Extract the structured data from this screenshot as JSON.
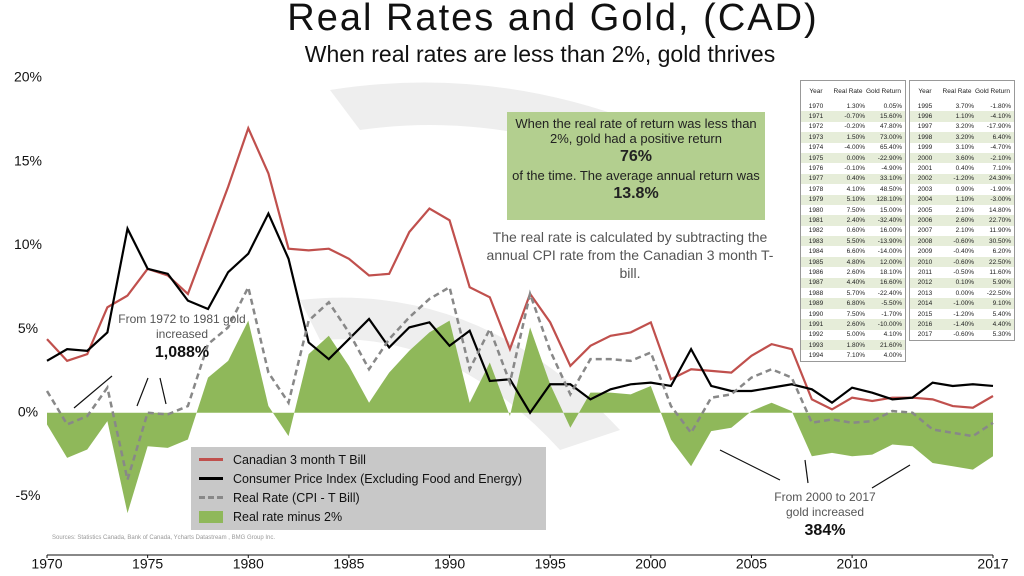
{
  "chart_data": {
    "type": "line",
    "title": "Real Rates and Gold, (CAD)",
    "subtitle": "When real rates are less than 2%, gold thrives",
    "x": [
      1970,
      1971,
      1972,
      1973,
      1974,
      1975,
      1976,
      1977,
      1978,
      1979,
      1980,
      1981,
      1982,
      1983,
      1984,
      1985,
      1986,
      1987,
      1988,
      1989,
      1990,
      1991,
      1992,
      1993,
      1994,
      1995,
      1996,
      1997,
      1998,
      1999,
      2000,
      2001,
      2002,
      2003,
      2004,
      2005,
      2006,
      2007,
      2008,
      2009,
      2010,
      2011,
      2012,
      2013,
      2014,
      2015,
      2016,
      2017
    ],
    "xlim": [
      1970,
      2017
    ],
    "xticks": [
      1970,
      1975,
      1980,
      1985,
      1990,
      1995,
      2000,
      2005,
      2010,
      2017
    ],
    "ylim": [
      -8.5,
      20
    ],
    "yticks": [
      {
        "value": 20,
        "label": "20%"
      },
      {
        "value": 15,
        "label": "15%"
      },
      {
        "value": 10,
        "label": "10%"
      },
      {
        "value": 5,
        "label": "5%"
      },
      {
        "value": 0,
        "label": "0%"
      },
      {
        "value": -5,
        "label": "-5%"
      }
    ],
    "grid": false,
    "series": [
      {
        "name": "Real rate minus 2%",
        "color": "#8fb85a",
        "area": true,
        "values": [
          -0.7,
          -2.7,
          -2.2,
          -0.5,
          -6.0,
          -2.0,
          -2.1,
          -1.6,
          2.1,
          3.1,
          5.5,
          0.4,
          -1.4,
          3.5,
          4.6,
          2.8,
          0.6,
          2.4,
          3.7,
          4.8,
          5.5,
          0.6,
          3.0,
          -0.2,
          5.1,
          1.7,
          -0.9,
          1.2,
          1.2,
          1.1,
          1.6,
          -1.6,
          -3.2,
          -1.1,
          -0.9,
          0.1,
          0.6,
          0.1,
          -2.6,
          -2.4,
          -2.6,
          -2.5,
          -1.9,
          -2.0,
          -3.0,
          -3.2,
          -3.4,
          -2.6
        ]
      },
      {
        "name": "Canadian 3 month T Bill",
        "color": "#c0504d",
        "values": [
          4.4,
          3.1,
          3.5,
          6.3,
          7.0,
          8.6,
          8.2,
          7.1,
          10.3,
          13.5,
          17.0,
          14.3,
          9.8,
          9.7,
          9.8,
          9.2,
          8.2,
          8.3,
          10.8,
          12.2,
          11.5,
          7.5,
          6.9,
          3.8,
          7.1,
          5.4,
          2.8,
          4.0,
          4.6,
          4.8,
          5.4,
          2.0,
          2.6,
          2.5,
          2.4,
          3.4,
          4.1,
          3.8,
          0.8,
          0.2,
          0.9,
          0.7,
          0.9,
          0.9,
          0.8,
          0.4,
          0.3,
          1.0
        ]
      },
      {
        "name": "Consumer Price Index (Excluding Food and Energy)",
        "color": "#000000",
        "values": [
          3.1,
          3.8,
          3.7,
          4.8,
          11.0,
          8.6,
          8.3,
          6.7,
          6.2,
          8.4,
          9.5,
          11.9,
          9.2,
          4.2,
          3.2,
          4.4,
          5.6,
          3.9,
          5.1,
          5.4,
          4.0,
          4.9,
          1.9,
          2.0,
          0.0,
          1.7,
          1.7,
          0.8,
          1.4,
          1.7,
          1.8,
          1.6,
          3.8,
          1.6,
          1.3,
          1.3,
          1.5,
          1.7,
          1.4,
          0.6,
          1.5,
          1.2,
          0.8,
          0.9,
          1.8,
          1.6,
          1.7,
          1.6
        ]
      },
      {
        "name": "Real Rate (CPI - T Bill)",
        "color": "#888888",
        "dashed": true,
        "values": [
          1.3,
          -0.7,
          -0.2,
          1.5,
          -4.0,
          0.0,
          -0.1,
          0.4,
          4.1,
          5.1,
          7.5,
          2.4,
          0.6,
          5.5,
          6.6,
          4.8,
          2.6,
          4.4,
          5.7,
          6.8,
          7.5,
          2.6,
          5.0,
          1.8,
          7.1,
          3.7,
          1.1,
          3.2,
          3.2,
          3.1,
          3.6,
          0.4,
          -1.2,
          0.9,
          1.1,
          2.1,
          2.6,
          2.1,
          -0.6,
          -0.4,
          -0.6,
          -0.5,
          0.1,
          0.0,
          -1.0,
          -1.2,
          -1.4,
          -0.6
        ]
      }
    ],
    "box": [
      "When the real rate of return was less than 2%, gold had a positive return",
      "76%",
      "of the time. The average annual return was",
      "13.8%"
    ],
    "note": "The real rate is calculated by subtracting the annual CPI rate from the Canadian 3 month T-bill.",
    "annotation_1": [
      "From 1972 to 1981 gold increased",
      "1,088%"
    ],
    "annotation_2": [
      "From 2000 to 2017 gold increased",
      "384%"
    ],
    "source": "Sources: Statistics Canada, Bank of Canada, Ycharts Datastream , BMG Group Inc.",
    "table_columns": [
      "Year",
      "Real Rate",
      "Gold Return"
    ],
    "tables": [
      [
        [
          "1970",
          "1.30%",
          "0.05%"
        ],
        [
          "1971",
          "-0.70%",
          "15.60%"
        ],
        [
          "1972",
          "-0.20%",
          "47.80%"
        ],
        [
          "1973",
          "1.50%",
          "73.00%"
        ],
        [
          "1974",
          "-4.00%",
          "65.40%"
        ],
        [
          "1975",
          "0.00%",
          "-22.90%"
        ],
        [
          "1976",
          "-0.10%",
          "-4.90%"
        ],
        [
          "1977",
          "0.40%",
          "33.10%"
        ],
        [
          "1978",
          "4.10%",
          "48.50%"
        ],
        [
          "1979",
          "5.10%",
          "128.10%"
        ],
        [
          "1980",
          "7.50%",
          "15.00%"
        ],
        [
          "1981",
          "2.40%",
          "-32.40%"
        ],
        [
          "1982",
          "0.60%",
          "16.00%"
        ],
        [
          "1983",
          "5.50%",
          "-13.90%"
        ],
        [
          "1984",
          "6.60%",
          "-14.00%"
        ],
        [
          "1985",
          "4.80%",
          "12.00%"
        ],
        [
          "1986",
          "2.60%",
          "18.10%"
        ],
        [
          "1987",
          "4.40%",
          "16.60%"
        ],
        [
          "1988",
          "5.70%",
          "-22.40%"
        ],
        [
          "1989",
          "6.80%",
          "-5.50%"
        ],
        [
          "1990",
          "7.50%",
          "-1.70%"
        ],
        [
          "1991",
          "2.60%",
          "-10.00%"
        ],
        [
          "1992",
          "5.00%",
          "4.10%"
        ],
        [
          "1993",
          "1.80%",
          "21.60%"
        ],
        [
          "1994",
          "7.10%",
          "4.00%"
        ]
      ],
      [
        [
          "1995",
          "3.70%",
          "-1.80%"
        ],
        [
          "1996",
          "1.10%",
          "-4.10%"
        ],
        [
          "1997",
          "3.20%",
          "-17.90%"
        ],
        [
          "1998",
          "3.20%",
          "6.40%"
        ],
        [
          "1999",
          "3.10%",
          "-4.70%"
        ],
        [
          "2000",
          "3.60%",
          "-2.10%"
        ],
        [
          "2001",
          "0.40%",
          "7.10%"
        ],
        [
          "2002",
          "-1.20%",
          "24.30%"
        ],
        [
          "2003",
          "0.90%",
          "-1.90%"
        ],
        [
          "2004",
          "1.10%",
          "-3.00%"
        ],
        [
          "2005",
          "2.10%",
          "14.80%"
        ],
        [
          "2006",
          "2.60%",
          "22.70%"
        ],
        [
          "2007",
          "2.10%",
          "11.90%"
        ],
        [
          "2008",
          "-0.60%",
          "30.50%"
        ],
        [
          "2009",
          "-0.40%",
          "6.20%"
        ],
        [
          "2010",
          "-0.60%",
          "22.50%"
        ],
        [
          "2011",
          "-0.50%",
          "11.60%"
        ],
        [
          "2012",
          "0.10%",
          "5.90%"
        ],
        [
          "2013",
          "0.00%",
          "-22.50%"
        ],
        [
          "2014",
          "-1.00%",
          "9.10%"
        ],
        [
          "2015",
          "-1.20%",
          "5.40%"
        ],
        [
          "2016",
          "-1.40%",
          "4.40%"
        ],
        [
          "2017",
          "-0.60%",
          "5.30%"
        ]
      ]
    ]
  }
}
